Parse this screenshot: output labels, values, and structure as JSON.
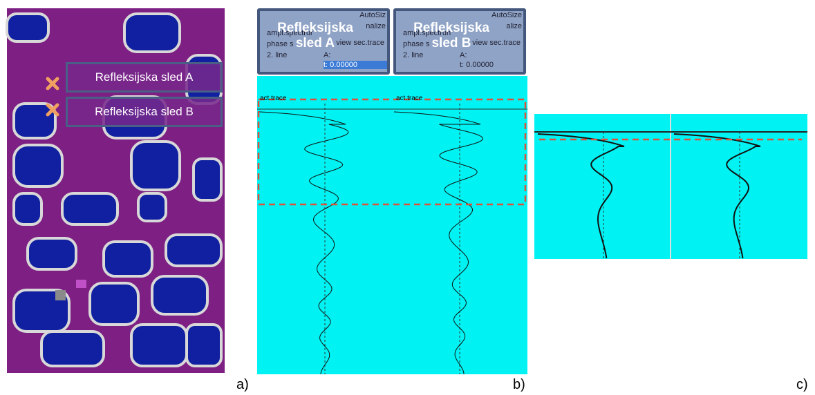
{
  "panel_a": {
    "labels": [
      "Refleksijska sled A",
      "Refleksijska sled B"
    ]
  },
  "panel_b": {
    "windows": [
      {
        "overlay": "Refleksijska sled A",
        "autosize": "AutoSiz",
        "normalize": "nalize",
        "options": [
          "ampl.spectrur",
          "phase s",
          "2. line"
        ],
        "view": "view sec.trace",
        "a": "A:",
        "t": "t: 0.00000",
        "trace": "act.trace"
      },
      {
        "overlay": "Refleksijska sled B",
        "autosize": "AutoSize",
        "normalize": "alize",
        "options": [
          "ampl.spectrun",
          "phase s",
          "2. line"
        ],
        "view": "view sec.trace",
        "a": "A:",
        "t": "t: 0.00000",
        "trace": "act.trace"
      }
    ]
  },
  "captions": [
    "a)",
    "b)",
    "c)"
  ]
}
